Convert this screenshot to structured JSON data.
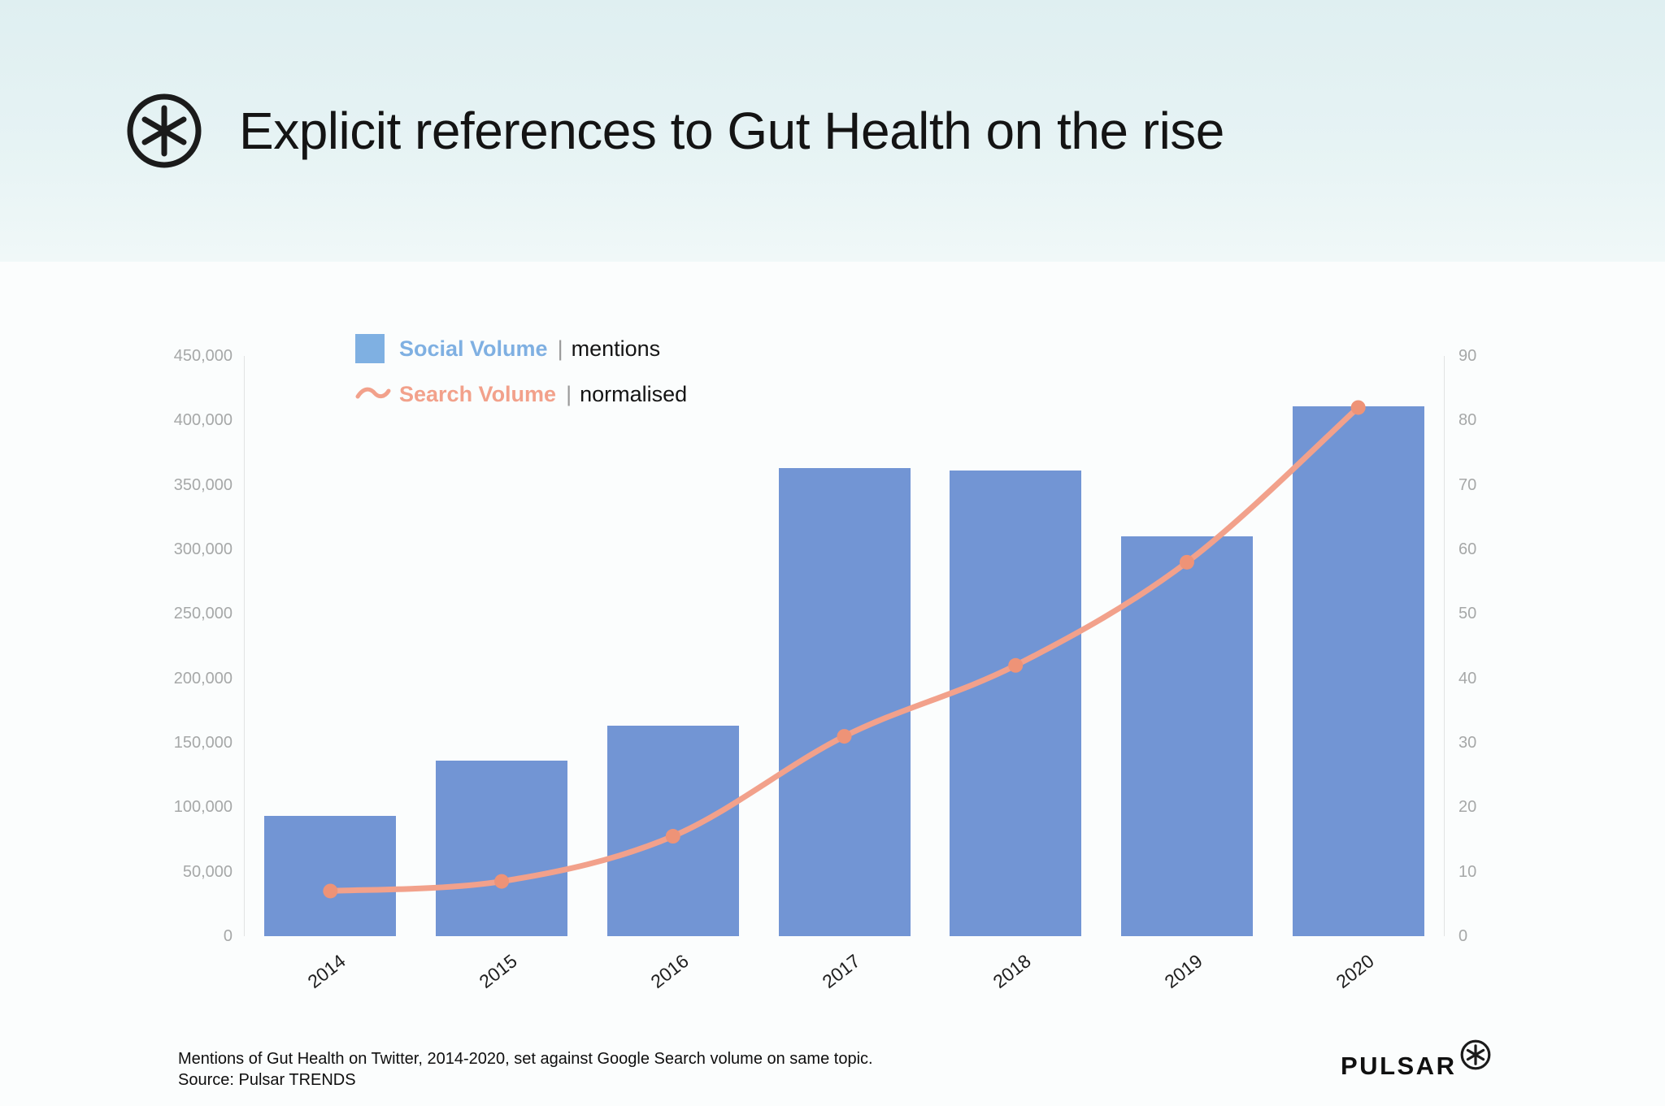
{
  "header": {
    "title": "Explicit references to Gut Health on the rise"
  },
  "legend": [
    {
      "name": "Social Volume",
      "separator": "|",
      "qualifier": "mentions",
      "color": "#7fb0e2",
      "swatch": "square-icon"
    },
    {
      "name": "Search Volume",
      "separator": "|",
      "qualifier": "normalised",
      "color": "#f2a18b",
      "swatch": "wave-icon"
    }
  ],
  "chart_data": {
    "type": "bar",
    "title": "Explicit references to Gut Health on the rise",
    "categories": [
      "2014",
      "2015",
      "2016",
      "2017",
      "2018",
      "2019",
      "2020"
    ],
    "series": [
      {
        "name": "Social Volume (mentions)",
        "type": "bar",
        "axis": "left",
        "color": "#7295d4",
        "values": [
          93000,
          136000,
          163000,
          363000,
          361000,
          310000,
          411000
        ]
      },
      {
        "name": "Search Volume (normalised)",
        "type": "line",
        "axis": "right",
        "color": "#f2a18b",
        "dot_color": "#ee9377",
        "values": [
          7,
          8.5,
          15.5,
          31,
          42,
          58,
          82
        ]
      }
    ],
    "left_axis": {
      "min": 0,
      "max": 450000,
      "step": 50000,
      "tick_labels": [
        "0",
        "50,000",
        "100,000",
        "150,000",
        "200,000",
        "250,000",
        "300,000",
        "350,000",
        "400,000",
        "450,000"
      ]
    },
    "right_axis": {
      "min": 0,
      "max": 90,
      "step": 10,
      "tick_labels": [
        "0",
        "10",
        "20",
        "30",
        "40",
        "50",
        "60",
        "70",
        "80",
        "90"
      ]
    },
    "grid": "off",
    "legend_position": "top-left"
  },
  "footer": {
    "caption_line1": "Mentions of Gut Health on Twitter, 2014-2020, set against Google Search volume on same topic.",
    "caption_line2": "Source: Pulsar TRENDS",
    "brand": "PULSAR"
  }
}
